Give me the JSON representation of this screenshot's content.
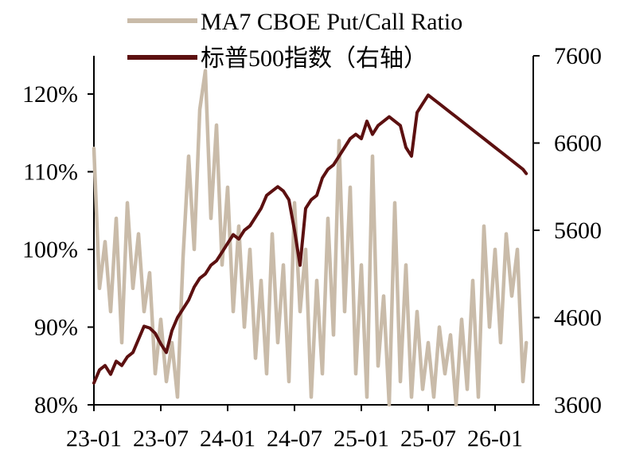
{
  "chart_data": {
    "type": "line",
    "title": "",
    "xlabel": "",
    "ylabel_left": "",
    "ylabel_right": "",
    "x_tick_labels": [
      "23-01",
      "23-07",
      "24-01",
      "24-07",
      "25-01",
      "25-07",
      "26-01"
    ],
    "x_range": [
      "2023-01",
      "2026-03"
    ],
    "y_left": {
      "ticks": [
        "80%",
        "90%",
        "100%",
        "110%",
        "120%"
      ],
      "range": [
        80,
        121
      ]
    },
    "y_right": {
      "ticks": [
        "3600",
        "4600",
        "5600",
        "6600",
        "7600"
      ],
      "range": [
        3600,
        7600
      ]
    },
    "grid": false,
    "legend_position": "top",
    "series": [
      {
        "name": "MA7 CBOE Put/Call Ratio",
        "axis": "left",
        "color": "#c9bba9",
        "x": [
          0,
          0.5,
          1,
          1.5,
          2,
          2.5,
          3,
          3.5,
          4,
          4.5,
          5,
          5.5,
          6,
          6.5,
          7,
          7.5,
          8,
          8.5,
          9,
          9.5,
          10,
          10.5,
          11,
          11.5,
          12,
          12.5,
          13,
          13.5,
          14,
          14.5,
          15,
          15.5,
          16,
          16.5,
          17,
          17.5,
          18,
          18.5,
          19,
          19.5,
          20,
          20.5,
          21,
          21.5,
          22,
          22.5,
          23,
          23.5,
          24,
          24.5,
          25,
          25.5,
          26,
          26.5,
          27,
          27.5,
          28,
          28.5,
          29,
          29.5,
          30,
          30.5,
          31,
          31.5,
          32,
          32.5,
          33,
          33.5,
          34,
          34.5,
          35,
          35.5,
          36,
          36.5,
          37,
          37.5,
          38,
          38.5,
          38.8
        ],
        "values": [
          113,
          95,
          101,
          92,
          104,
          88,
          106,
          95,
          102,
          92,
          97,
          84,
          91,
          83,
          88,
          81,
          99,
          112,
          100,
          118,
          123,
          104,
          116,
          98,
          108,
          92,
          103,
          90,
          100,
          86,
          96,
          84,
          102,
          88,
          98,
          83,
          106,
          92,
          100,
          81,
          96,
          84,
          104,
          89,
          114,
          92,
          108,
          84,
          98,
          81,
          112,
          85,
          94,
          80,
          106,
          83,
          98,
          81,
          92,
          82,
          88,
          81,
          90,
          84,
          89,
          80,
          91,
          82,
          96,
          81,
          103,
          90,
          100,
          88,
          102,
          94,
          100,
          83,
          88
        ]
      },
      {
        "name": "标普500指数（右轴）",
        "axis": "right",
        "color": "#5c1010",
        "x": [
          0,
          0.5,
          1,
          1.5,
          2,
          2.5,
          3,
          3.5,
          4,
          4.5,
          5,
          5.5,
          6,
          6.5,
          7,
          7.5,
          8,
          8.5,
          9,
          9.5,
          10,
          10.5,
          11,
          11.5,
          12,
          12.5,
          13,
          13.5,
          14,
          14.5,
          15,
          15.5,
          16,
          16.5,
          17,
          17.5,
          18,
          18.5,
          19,
          19.5,
          20,
          20.5,
          21,
          21.5,
          22,
          22.5,
          23,
          23.5,
          24,
          24.5,
          25,
          25.5,
          26,
          26.5,
          27,
          27.5,
          28,
          28.5,
          29,
          29.5,
          30,
          30.5,
          31,
          31.5,
          32,
          32.5,
          33,
          33.5,
          34,
          34.5,
          35,
          35.5,
          36,
          36.5,
          37,
          37.5,
          38,
          38.5,
          38.8
        ],
        "values": [
          3850,
          4000,
          4050,
          3950,
          4100,
          4050,
          4150,
          4200,
          4350,
          4500,
          4480,
          4420,
          4300,
          4200,
          4450,
          4600,
          4700,
          4800,
          4950,
          5050,
          5100,
          5200,
          5250,
          5350,
          5450,
          5550,
          5500,
          5600,
          5650,
          5750,
          5850,
          6000,
          6050,
          6100,
          6050,
          5950,
          5600,
          5200,
          5850,
          5950,
          6000,
          6200,
          6300,
          6350,
          6450,
          6550,
          6650,
          6700,
          6650,
          6850,
          6700,
          6800,
          6850,
          6900,
          6850,
          6800,
          6550,
          6450,
          6950,
          7050,
          7150,
          7100,
          7050,
          7000,
          6950,
          6900,
          6850,
          6800,
          6750,
          6700,
          6650,
          6600,
          6550,
          6500,
          6450,
          6400,
          6350,
          6300,
          6250
        ]
      }
    ]
  }
}
